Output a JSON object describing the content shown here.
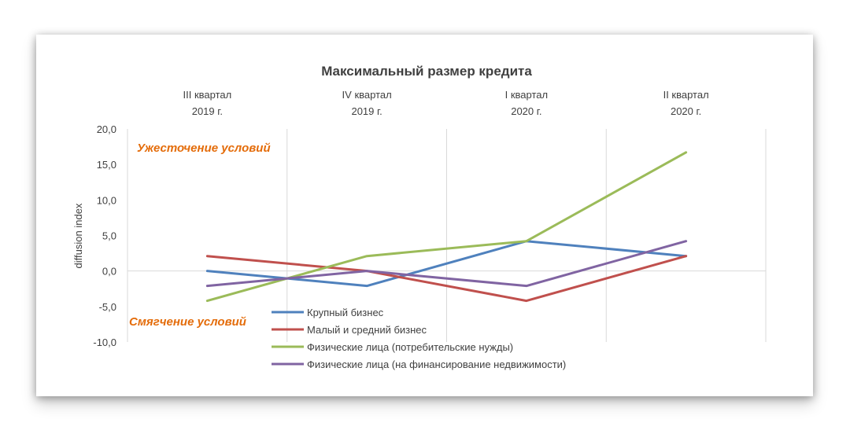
{
  "chart_data": {
    "type": "line",
    "title": "Максимальный размер кредита",
    "categories": [
      [
        "III квартал",
        "2019 г."
      ],
      [
        "IV квартал",
        "2019 г."
      ],
      [
        "I квартал",
        "2020 г."
      ],
      [
        "II квартал",
        "2020 г."
      ]
    ],
    "ylabel": "diffusion index",
    "ylim": [
      -10,
      20
    ],
    "yticks": [
      "-10,0",
      "-5,0",
      "0,0",
      "5,0",
      "10,0",
      "15,0",
      "20,0"
    ],
    "grid": "vertical",
    "annotations": {
      "top": "Ужесточение условий",
      "bottom": "Смягчение условий"
    },
    "legend_position": "bottom-center",
    "series": [
      {
        "name": "Крупный бизнес",
        "color": "#4f81bd",
        "values": [
          0,
          -2.1,
          4.2,
          2.1
        ]
      },
      {
        "name": "Малый и средний бизнес",
        "color": "#c0504d",
        "values": [
          2.1,
          0,
          -4.2,
          2.1
        ]
      },
      {
        "name": "Физические лица (потребительские нужды)",
        "color": "#9bbb59",
        "values": [
          -4.2,
          2.1,
          4.2,
          16.7
        ]
      },
      {
        "name": "Физические лица (на финансирование недвижимости)",
        "color": "#8064a2",
        "values": [
          -2.1,
          0,
          -2.1,
          4.2
        ]
      }
    ]
  }
}
